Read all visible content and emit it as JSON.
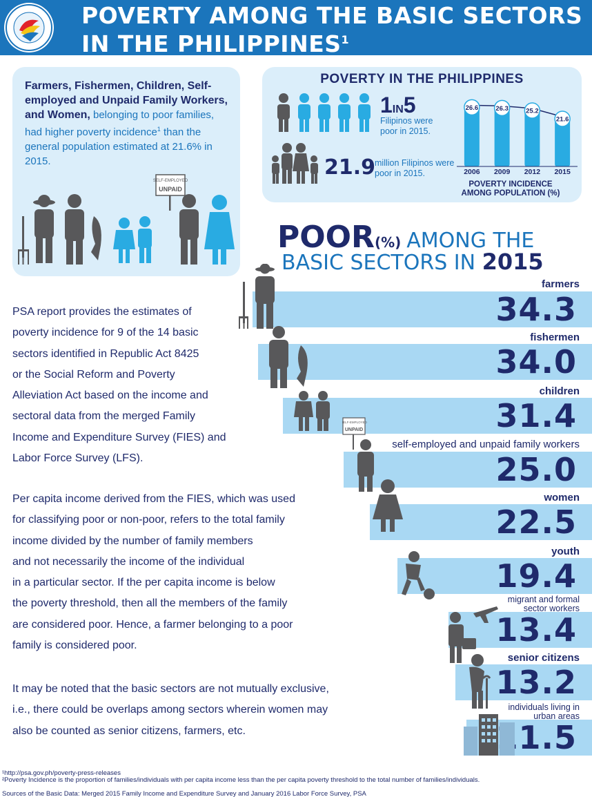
{
  "header": {
    "title_line1": "POVERTY AMONG THE BASIC SECTORS",
    "title_line2": "IN THE PHILIPPINES",
    "superscript": "1",
    "logo_text": "PHILIPPINE STATISTICS AUTHORITY"
  },
  "intro": {
    "bold": "Farmers, Fishermen, Children, Self-employed and Unpaid Family Workers, and Women,",
    "rest": " belonging to poor families, had higher poverty incidence",
    "sup": "1",
    "rest2": " than the general population estimated at 21.6% in 2015.",
    "sign_line1": "SELF-EMPLOYED",
    "sign_line2": "UNPAID"
  },
  "philippines": {
    "title": "POVERTY IN THE PHILIPPINES",
    "ratio_num": "1",
    "ratio_in": "IN",
    "ratio_den": "5",
    "ratio_note": "Filipinos were poor in 2015.",
    "million_num": "21.9",
    "million_note": "million Filipinos were poor in 2015.",
    "mini_caption_line1": "POVERTY INCIDENCE",
    "mini_caption_line2": "AMONG POPULATION (%)"
  },
  "section": {
    "poor": "POOR",
    "pct": "(%)",
    "among": "AMONG THE",
    "line2": "BASIC SECTORS IN ",
    "year": "2015"
  },
  "body": {
    "p1": [
      "PSA report provides the estimates of",
      "poverty incidence for 9 of the 14 basic",
      "sectors identified in Republic Act 8425",
      "or the Social Reform and Poverty",
      "Alleviation Act based on the income and",
      "sectoral data from the merged Family",
      "Income and Expenditure Survey (FIES) and",
      "Labor Force Survey (LFS)."
    ],
    "p2": [
      "Per capita income derived from the FIES, which was used",
      "for classifying poor or non-poor, refers to the total family",
      "income divided by the number of family members",
      "and not necessarily the income of the individual",
      "in a particular sector.  If the per capita income is below",
      "the poverty threshold, then all the members of the family",
      "are considered poor. Hence, a farmer belonging to a poor",
      "family is considered poor."
    ],
    "p3": [
      "It may be noted that the basic sectors are not mutually exclusive,",
      "i.e., there could be overlaps among sectors wherein women may",
      "also be counted as senior citizens, farmers, etc."
    ]
  },
  "footnotes": {
    "f1": "¹http://psa.gov.ph/poverty-press-releases",
    "f2": "²Poverty Incidence is the proportion of families/individuals with per capita income less than the per capita poverty threshold to the total number of families/individuals.",
    "f3": "Sources of the Basic Data:  Merged 2015 Family Income and Expenditure Survey and January 2016 Labor Force Survey, PSA"
  },
  "colors": {
    "navy": "#1f2a6b",
    "blue": "#1b75bc",
    "bar": "#a9d8f3",
    "panel": "#dbeefa",
    "figure": "#58585a",
    "figure_blue": "#29abe2"
  },
  "chart_data": [
    {
      "type": "bar",
      "categories": [
        "2006",
        "2009",
        "2012",
        "2015"
      ],
      "values": [
        26.6,
        26.3,
        25.2,
        21.6
      ],
      "ylim": [
        0,
        30
      ]
    },
    {
      "type": "bar",
      "orientation": "horizontal",
      "categories": [
        "farmers",
        "fishermen",
        "children",
        "self-employed and unpaid family workers",
        "women",
        "youth",
        "migrant and formal sector workers",
        "senior citizens",
        "individuals living in urban areas"
      ],
      "values": [
        "34.3",
        "34.0",
        "31.4",
        "25.0",
        "22.5",
        "19.4",
        "13.4",
        "13.2",
        "11.5"
      ]
    }
  ]
}
